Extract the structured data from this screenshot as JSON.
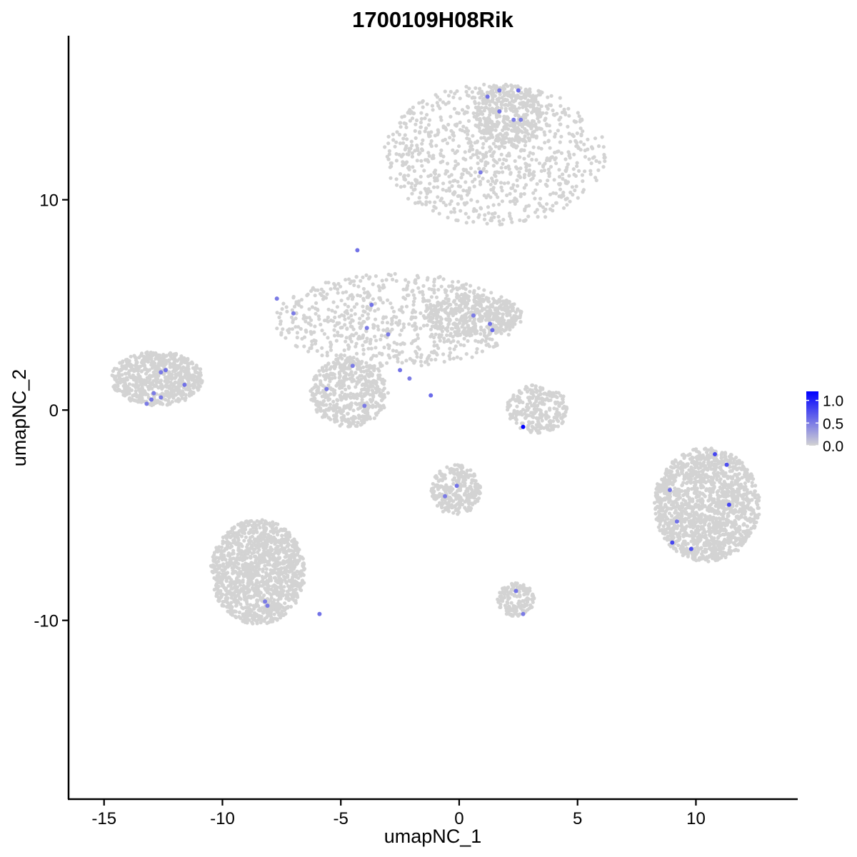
{
  "chart_data": {
    "type": "scatter",
    "title": "1700109H08Rik",
    "xlabel": "umapNC_1",
    "ylabel": "umapNC_2",
    "xlim": [
      -16.5,
      14.3
    ],
    "ylim": [
      -18.5,
      17.8
    ],
    "x_ticks": [
      -15,
      -10,
      -5,
      0,
      5,
      10
    ],
    "y_ticks": [
      -10,
      0,
      10
    ],
    "x_tick_labels": [
      "-15",
      "-10",
      "-5",
      "0",
      "5",
      "10"
    ],
    "y_tick_labels": [
      "-10",
      "0",
      "10"
    ],
    "grid": false,
    "legend": {
      "placement": "right",
      "labels": [
        "1.0",
        "0.5",
        "0.0"
      ],
      "values": [
        1.0,
        0.5,
        0.0
      ],
      "max_value": 1.2,
      "color_low": "#d3d3d3",
      "color_high": "#0000ff"
    },
    "background_color": "#d3d3d3",
    "clusters": [
      {
        "name": "top-right",
        "x": [
          -3.2,
          6.2
        ],
        "y": [
          8.8,
          15.5
        ],
        "n": 900
      },
      {
        "name": "top-right-upper",
        "x": [
          0.7,
          3.5
        ],
        "y": [
          12.5,
          15.5
        ],
        "n": 350
      },
      {
        "name": "center-star",
        "x": [
          -7.8,
          2.5
        ],
        "y": [
          2.0,
          6.5
        ],
        "n": 700
      },
      {
        "name": "center-lower-lobe",
        "x": [
          -6.3,
          -3.0
        ],
        "y": [
          -0.8,
          2.5
        ],
        "n": 500
      },
      {
        "name": "center-right-arm",
        "x": [
          -1.5,
          2.7
        ],
        "y": [
          3.5,
          5.5
        ],
        "n": 400
      },
      {
        "name": "left-cluster",
        "x": [
          -14.7,
          -10.8
        ],
        "y": [
          0.2,
          2.8
        ],
        "n": 700
      },
      {
        "name": "small-crescent",
        "x": [
          2.0,
          4.6
        ],
        "y": [
          -1.1,
          1.2
        ],
        "n": 250
      },
      {
        "name": "center-bottom-cluster",
        "x": [
          -1.2,
          0.9
        ],
        "y": [
          -5.0,
          -2.6
        ],
        "n": 300
      },
      {
        "name": "right-big-cluster",
        "x": [
          8.2,
          12.7
        ],
        "y": [
          -7.2,
          -1.8
        ],
        "n": 1500
      },
      {
        "name": "bottom-left-cluster",
        "x": [
          -10.5,
          -6.5
        ],
        "y": [
          -10.2,
          -5.2
        ],
        "n": 1300
      },
      {
        "name": "small-bottom",
        "x": [
          1.6,
          3.2
        ],
        "y": [
          -9.8,
          -8.2
        ],
        "n": 150
      }
    ],
    "expressed_points": {
      "x": [
        1.2,
        1.7,
        2.5,
        1.7,
        2.3,
        2.6,
        0.9,
        -4.3,
        -7.7,
        -7.0,
        -3.7,
        -3.9,
        -3.0,
        0.6,
        1.3,
        1.4,
        -4.5,
        -5.6,
        -4.0,
        -2.5,
        -2.1,
        -1.2,
        2.7,
        -12.4,
        -12.6,
        -11.6,
        -12.9,
        -12.6,
        -13.0,
        -13.2,
        10.8,
        11.3,
        8.9,
        11.4,
        9.2,
        9.0,
        9.8,
        -0.1,
        -0.6,
        -8.2,
        -8.1,
        -5.9,
        2.4,
        2.7
      ],
      "y": [
        14.9,
        15.2,
        15.2,
        14.2,
        13.8,
        13.8,
        11.3,
        7.6,
        5.3,
        4.6,
        5.0,
        3.9,
        3.6,
        4.5,
        4.1,
        3.8,
        2.1,
        1.0,
        0.2,
        1.9,
        1.5,
        0.7,
        -0.8,
        1.9,
        1.8,
        1.2,
        0.8,
        0.6,
        0.5,
        0.3,
        -2.1,
        -2.6,
        -3.8,
        -4.5,
        -5.3,
        -6.3,
        -6.6,
        -3.6,
        -4.1,
        -9.1,
        -9.3,
        -9.7,
        -8.6,
        -9.7
      ],
      "values": [
        0.55,
        0.5,
        0.6,
        0.55,
        0.5,
        0.5,
        0.5,
        0.55,
        0.5,
        0.5,
        0.55,
        0.5,
        0.5,
        0.5,
        0.55,
        0.6,
        0.5,
        0.5,
        0.5,
        0.55,
        0.5,
        0.6,
        1.2,
        0.55,
        0.5,
        0.55,
        0.5,
        0.5,
        0.55,
        0.5,
        0.8,
        0.75,
        0.55,
        0.8,
        0.55,
        0.8,
        0.75,
        0.55,
        0.5,
        0.5,
        0.5,
        0.55,
        0.55,
        0.5
      ]
    }
  }
}
